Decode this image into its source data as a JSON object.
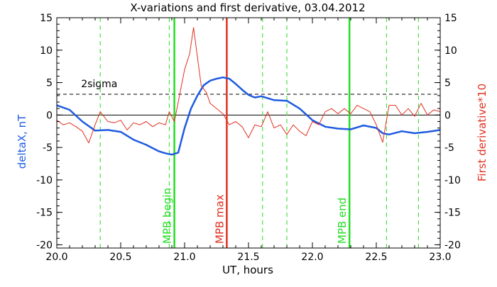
{
  "chart_data": {
    "type": "line",
    "title": "X-variations and first derivative, 03.04.2012",
    "xlabel": "UT, hours",
    "ylabel_left": "deltaX, nT",
    "ylabel_right": "First derivative*10",
    "xlim": [
      20.0,
      23.0
    ],
    "ylim": [
      -20.5,
      15
    ],
    "x_ticks": [
      "20.0",
      "20.5",
      "21.0",
      "21.5",
      "22.0",
      "22.5",
      "23.0"
    ],
    "y_ticks_left": [
      "15",
      "10",
      "5",
      "0",
      "-5",
      "-10",
      "-15",
      "-20"
    ],
    "y_ticks_right": [
      "15",
      "10",
      "5",
      "0",
      "-5",
      "-10",
      "-15",
      "-20"
    ],
    "threshold": {
      "label": "2sigma",
      "value": 3.2
    },
    "zero_line": 0,
    "colors": {
      "deltaX": "#1e5be0",
      "derivative": "#e03020",
      "markers": "#22dd22",
      "mpb_max": "#e03020",
      "axes": "#000000"
    },
    "vertical_lines": [
      {
        "x": 20.34,
        "style": "dashed",
        "color": "#22dd22",
        "label": ""
      },
      {
        "x": 20.88,
        "style": "dashed",
        "color": "#22dd22",
        "label": ""
      },
      {
        "x": 20.92,
        "style": "solid",
        "color": "#22dd22",
        "label": "MPB begin"
      },
      {
        "x": 21.33,
        "style": "solid",
        "color": "#e03020",
        "label": "MPB max"
      },
      {
        "x": 21.61,
        "style": "dashed",
        "color": "#22dd22",
        "label": ""
      },
      {
        "x": 21.8,
        "style": "dashed",
        "color": "#22dd22",
        "label": ""
      },
      {
        "x": 22.29,
        "style": "solid",
        "color": "#22dd22",
        "label": "MPB end"
      },
      {
        "x": 22.58,
        "style": "dashed",
        "color": "#22dd22",
        "label": ""
      },
      {
        "x": 22.83,
        "style": "dashed",
        "color": "#22dd22",
        "label": ""
      }
    ],
    "series": [
      {
        "name": "deltaX, nT",
        "color": "#1e5be0",
        "x": [
          20.0,
          20.1,
          20.2,
          20.3,
          20.4,
          20.5,
          20.6,
          20.7,
          20.8,
          20.85,
          20.9,
          20.95,
          21.0,
          21.05,
          21.1,
          21.15,
          21.2,
          21.25,
          21.3,
          21.35,
          21.4,
          21.45,
          21.5,
          21.55,
          21.6,
          21.7,
          21.8,
          21.9,
          22.0,
          22.1,
          22.2,
          22.3,
          22.4,
          22.5,
          22.55,
          22.6,
          22.7,
          22.8,
          22.9,
          23.0
        ],
        "values": [
          1.5,
          0.8,
          -1.0,
          -2.4,
          -2.3,
          -2.6,
          -3.8,
          -4.6,
          -5.6,
          -5.9,
          -6.1,
          -5.8,
          -2.0,
          1.0,
          3.0,
          4.6,
          5.3,
          5.6,
          5.8,
          5.6,
          4.8,
          3.9,
          3.1,
          2.7,
          2.9,
          2.3,
          2.2,
          1.0,
          -0.8,
          -1.8,
          -2.1,
          -2.2,
          -1.6,
          -2.0,
          -2.8,
          -3.0,
          -2.5,
          -2.8,
          -2.6,
          -2.3
        ]
      },
      {
        "name": "First derivative*10",
        "color": "#e03020",
        "x": [
          20.0,
          20.05,
          20.1,
          20.15,
          20.2,
          20.25,
          20.3,
          20.34,
          20.4,
          20.45,
          20.5,
          20.55,
          20.6,
          20.65,
          20.7,
          20.75,
          20.8,
          20.85,
          20.88,
          20.92,
          20.96,
          21.0,
          21.04,
          21.07,
          21.1,
          21.13,
          21.17,
          21.2,
          21.25,
          21.3,
          21.35,
          21.4,
          21.45,
          21.5,
          21.55,
          21.6,
          21.65,
          21.7,
          21.75,
          21.8,
          21.85,
          21.9,
          21.95,
          22.0,
          22.05,
          22.1,
          22.15,
          22.2,
          22.25,
          22.3,
          22.35,
          22.4,
          22.45,
          22.5,
          22.55,
          22.6,
          22.65,
          22.7,
          22.75,
          22.8,
          22.85,
          22.9,
          22.95,
          23.0
        ],
        "values": [
          -0.8,
          -1.5,
          -1.2,
          -1.8,
          -2.5,
          -4.3,
          -1.5,
          0.5,
          -1.0,
          -1.2,
          -0.8,
          -2.3,
          -1.2,
          -1.5,
          -1.0,
          -1.8,
          -1.2,
          -1.5,
          0.5,
          -1.0,
          3.0,
          7.0,
          9.5,
          13.5,
          9.0,
          4.5,
          3.5,
          1.8,
          1.0,
          0.2,
          -1.5,
          -1.0,
          -1.8,
          -3.5,
          -1.5,
          -1.8,
          0.5,
          -2.0,
          -1.5,
          -3.0,
          -1.5,
          -2.5,
          -3.2,
          -1.0,
          -1.5,
          0.5,
          1.0,
          0.2,
          1.0,
          0.2,
          1.5,
          1.0,
          0.5,
          -1.5,
          -4.2,
          1.5,
          1.5,
          0.0,
          1.0,
          -0.2,
          1.8,
          0.0,
          0.8,
          0.5
        ]
      }
    ],
    "grid": false,
    "legend": "none"
  }
}
